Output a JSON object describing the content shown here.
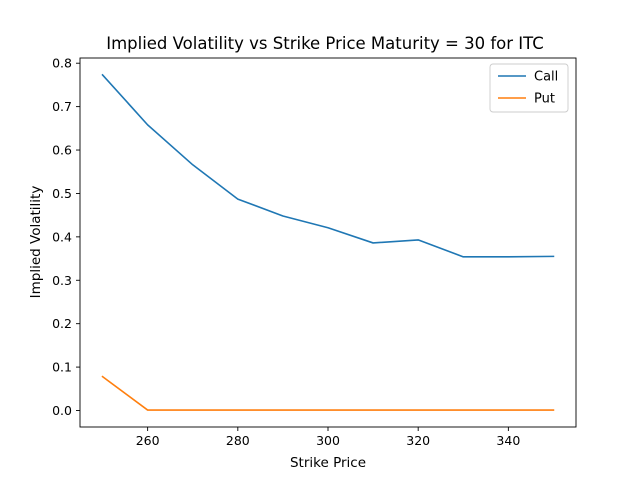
{
  "chart_data": {
    "type": "line",
    "title": "Implied Volatility vs Strike Price Maturity = 30 for ITC",
    "xlabel": "Strike Price",
    "ylabel": "Implied Volatility",
    "x": [
      250,
      260,
      270,
      280,
      290,
      300,
      310,
      320,
      330,
      340,
      350
    ],
    "series": [
      {
        "name": "Call",
        "color": "#1f77b4",
        "values": [
          0.773,
          0.658,
          0.566,
          0.487,
          0.448,
          0.421,
          0.386,
          0.393,
          0.354,
          0.354,
          0.355
        ]
      },
      {
        "name": "Put",
        "color": "#ff7f0e",
        "values": [
          0.078,
          0.001,
          0.001,
          0.001,
          0.001,
          0.001,
          0.001,
          0.001,
          0.001,
          0.001,
          0.001
        ]
      }
    ],
    "xlim": [
      245,
      355
    ],
    "ylim": [
      -0.038,
      0.812
    ],
    "xticks": [
      260,
      280,
      300,
      320,
      340
    ],
    "yticks": [
      0.0,
      0.1,
      0.2,
      0.3,
      0.4,
      0.5,
      0.6,
      0.7,
      0.8
    ],
    "xtick_labels": [
      "260",
      "280",
      "300",
      "320",
      "340"
    ],
    "ytick_labels": [
      "0.0",
      "0.1",
      "0.2",
      "0.3",
      "0.4",
      "0.5",
      "0.6",
      "0.7",
      "0.8"
    ],
    "grid": false,
    "legend_position": "top-right"
  }
}
